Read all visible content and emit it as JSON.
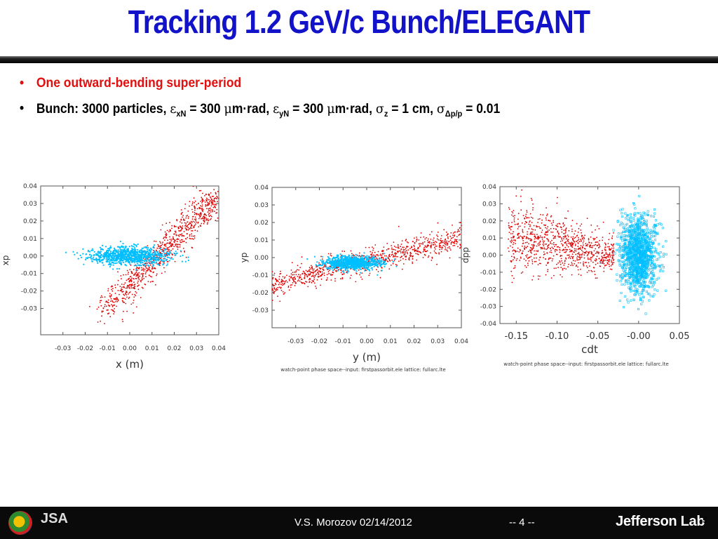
{
  "slide": {
    "title": "Tracking 1.2 GeV/c Bunch/ELEGANT",
    "bullets": {
      "b1": "One outward-bending super-period",
      "b2_prefix": "Bunch: 3000 particles, ",
      "eps": "ε",
      "xN": "xN",
      "eq300a": " = 300 ",
      "mu": "μ",
      "mrad_a": "m·rad, ",
      "yN": "yN",
      "eq300b": " = 300 ",
      "mrad_b": "m·rad, ",
      "sigma": "σ",
      "z": "z",
      "eq1cm": " = 1 cm, ",
      "dpp": "Δp/p",
      "eq001": " = 0.01"
    }
  },
  "footer": {
    "author_date": "V.S. Morozov 02/14/2012",
    "page": "-- 4 --",
    "lab": "Jefferson Lab",
    "jsa": "JSA",
    "slide_num": "5"
  },
  "colors": {
    "title": "#1212c8",
    "red_bullet": "#e01010",
    "red_particles": "#e00000",
    "blue_particles": "#00bfff"
  },
  "chart_data": [
    {
      "type": "scatter",
      "xlabel": "x (m)",
      "ylabel": "xp",
      "caption": "watch-point phase space--input: firstpassorbit.ele   lattice: fullarc.lte",
      "xlim": [
        -0.04,
        0.04
      ],
      "ylim": [
        -0.045,
        0.04
      ],
      "xticks": [
        "-0.03",
        "-0.02",
        "-0.01",
        "0.00",
        "0.01",
        "0.02",
        "0.03",
        "0.04"
      ],
      "yticks": [
        "0.04",
        "0.03",
        "0.02",
        "0.01",
        "0.00",
        "-0.01",
        "-0.02",
        "-0.03"
      ],
      "series": [
        {
          "color": "#e00000",
          "approx_points": [
            [
              -0.01,
              -0.03
            ],
            [
              0.0,
              -0.01
            ],
            [
              0.01,
              0.005
            ],
            [
              0.02,
              0.015
            ],
            [
              0.03,
              0.025
            ],
            [
              0.04,
              0.035
            ]
          ]
        },
        {
          "color": "#00bfff",
          "approx_points": [
            [
              -0.01,
              0.0
            ],
            [
              0.0,
              0.0
            ],
            [
              0.01,
              0.0
            ]
          ]
        }
      ]
    },
    {
      "type": "scatter",
      "xlabel": "y (m)",
      "ylabel": "yp",
      "caption": "watch-point phase space--input: firstpassorbit.ele   lattice: fullarc.lte",
      "xlim": [
        -0.04,
        0.04
      ],
      "ylim": [
        -0.04,
        0.04
      ],
      "xticks": [
        "-0.03",
        "-0.02",
        "-0.01",
        "0.00",
        "0.01",
        "0.02",
        "0.03",
        "0.04"
      ],
      "yticks": [
        "0.04",
        "0.03",
        "0.02",
        "0.01",
        "0.00",
        "-0.01",
        "-0.02",
        "-0.03"
      ],
      "series": [
        {
          "color": "#e00000",
          "approx_points": [
            [
              -0.04,
              -0.015
            ],
            [
              -0.02,
              -0.008
            ],
            [
              0.0,
              -0.002
            ],
            [
              0.02,
              0.004
            ],
            [
              0.04,
              0.01
            ]
          ]
        },
        {
          "color": "#00bfff",
          "approx_points": [
            [
              -0.01,
              -0.004
            ],
            [
              -0.006,
              -0.003
            ],
            [
              -0.002,
              -0.003
            ]
          ]
        }
      ]
    },
    {
      "type": "scatter",
      "xlabel": "cdt",
      "ylabel": "dpp",
      "caption": "watch-point phase space--input: firstpassorbit.ele   lattice: fullarc.lte",
      "xlim": [
        -0.17,
        0.05
      ],
      "ylim": [
        -0.04,
        0.04
      ],
      "xticks": [
        "-0.15",
        "-0.10",
        "-0.05",
        "-0.00",
        "0.05"
      ],
      "yticks": [
        "0.04",
        "0.03",
        "0.02",
        "0.01",
        "0.00",
        "-0.01",
        "-0.02",
        "-0.03",
        "-0.04"
      ],
      "series": [
        {
          "color": "#e00000",
          "approx_points": [
            [
              -0.15,
              0.015
            ],
            [
              -0.1,
              0.008
            ],
            [
              -0.05,
              0.003
            ],
            [
              -0.03,
              0.0
            ]
          ]
        },
        {
          "color": "#00bfff",
          "approx_points": [
            [
              -0.01,
              0.0
            ],
            [
              0.0,
              0.0
            ],
            [
              0.01,
              0.0
            ]
          ]
        }
      ]
    }
  ]
}
